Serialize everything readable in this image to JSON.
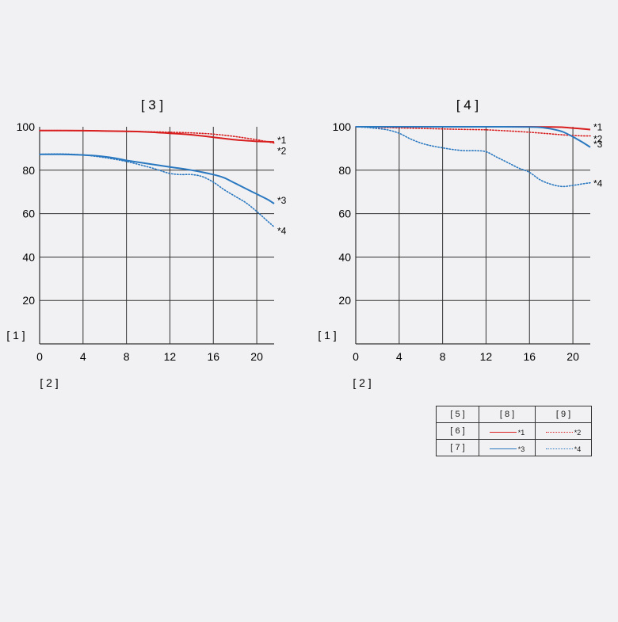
{
  "colors": {
    "sagittal": "#d81e1e",
    "meridional_blue": "#2a78c0",
    "grid": "#333333",
    "background": "#f1f1f3"
  },
  "chart_data": [
    {
      "type": "line",
      "title": "[ 3 ]",
      "ylabel": "[ 1 ]",
      "xlabel": "[ 2 ]",
      "xlim": [
        0,
        21.6
      ],
      "ylim": [
        0,
        100
      ],
      "xticks": [
        "0",
        "4",
        "8",
        "12",
        "16",
        "20"
      ],
      "yticks": [
        "20",
        "40",
        "60",
        "80",
        "100"
      ],
      "grid": true,
      "series": [
        {
          "name": "*1",
          "style": "solid",
          "color": "red",
          "x": [
            0,
            4,
            8,
            10,
            12,
            14,
            16,
            18,
            20,
            21.6
          ],
          "y": [
            98.3,
            98.2,
            97.9,
            97.6,
            97.0,
            96.3,
            95.2,
            94.0,
            93.3,
            93.0
          ]
        },
        {
          "name": "*2",
          "style": "dotted",
          "color": "red",
          "x": [
            0,
            4,
            8,
            12,
            14,
            16,
            18,
            20,
            21.6
          ],
          "y": [
            98.3,
            98.2,
            97.9,
            97.5,
            97.2,
            96.6,
            95.5,
            94.0,
            92.5
          ]
        },
        {
          "name": "*3",
          "style": "solid",
          "color": "blue",
          "x": [
            0,
            2,
            4,
            5.5,
            7,
            8,
            10,
            12,
            14,
            16,
            17,
            18,
            19,
            20,
            21,
            21.6
          ],
          "y": [
            87.3,
            87.3,
            87.0,
            86.5,
            85.5,
            84.5,
            83.0,
            81.5,
            80.0,
            78.0,
            76.5,
            74.0,
            71.5,
            69.0,
            66.5,
            64.6
          ]
        },
        {
          "name": "*4",
          "style": "dotted",
          "color": "blue",
          "x": [
            0,
            2,
            4,
            6,
            8,
            10,
            11,
            12,
            13,
            14,
            15,
            16,
            17,
            18,
            19,
            20,
            21,
            21.6
          ],
          "y": [
            87.3,
            87.5,
            87.0,
            85.8,
            84.0,
            81.5,
            80.0,
            78.5,
            78.0,
            78.0,
            77.0,
            74.5,
            71.0,
            68.0,
            65.0,
            61.0,
            56.5,
            53.9
          ]
        }
      ],
      "series_labels_order": [
        "*1",
        "*2",
        "*3",
        "*4"
      ]
    },
    {
      "type": "line",
      "title": "[ 4 ]",
      "ylabel": "[ 1 ]",
      "xlabel": "[ 2 ]",
      "xlim": [
        0,
        21.6
      ],
      "ylim": [
        0,
        100
      ],
      "xticks": [
        "0",
        "4",
        "8",
        "12",
        "16",
        "20"
      ],
      "yticks": [
        "20",
        "40",
        "60",
        "80",
        "100"
      ],
      "grid": true,
      "series": [
        {
          "name": "*1",
          "style": "solid",
          "color": "red",
          "x": [
            0,
            8,
            12,
            16,
            18,
            19,
            20,
            21,
            21.6
          ],
          "y": [
            100,
            100,
            100,
            100,
            99.9,
            99.8,
            99.4,
            99.0,
            98.7
          ]
        },
        {
          "name": "*2",
          "style": "dotted",
          "color": "red",
          "x": [
            0,
            4,
            8,
            10,
            12,
            14,
            16,
            18,
            19,
            20,
            21,
            21.6
          ],
          "y": [
            100,
            99.5,
            99.0,
            98.8,
            98.6,
            98.1,
            97.5,
            96.7,
            96.3,
            96.0,
            95.8,
            95.8
          ]
        },
        {
          "name": "*3",
          "style": "solid",
          "color": "blue",
          "x": [
            0,
            4,
            8,
            12,
            16,
            17,
            18,
            19,
            20,
            21,
            21.6
          ],
          "y": [
            100,
            100,
            100,
            100,
            99.9,
            99.7,
            99.0,
            97.8,
            95.4,
            92.5,
            90.6
          ]
        },
        {
          "name": "*4",
          "style": "dotted",
          "color": "blue",
          "x": [
            0,
            1,
            2,
            3,
            4,
            5,
            6,
            7,
            8,
            9,
            10,
            11,
            12,
            13,
            14,
            15,
            16,
            17,
            18,
            19,
            20,
            21,
            21.6
          ],
          "y": [
            100,
            99.7,
            99.2,
            98.5,
            97.0,
            94.5,
            92.5,
            91.2,
            90.3,
            89.5,
            89.0,
            89.0,
            88.5,
            86.0,
            83.5,
            81.0,
            79.0,
            75.5,
            73.5,
            72.5,
            73.0,
            73.8,
            74.2
          ]
        }
      ],
      "series_labels_order": [
        "*1",
        "*2",
        "*3",
        "*4"
      ]
    }
  ],
  "legend": {
    "header": [
      "[ 5 ]",
      "[ 8 ]",
      "[ 9 ]"
    ],
    "rows": [
      {
        "label": "[ 6 ]",
        "solid_name": "*1",
        "dotted_name": "*2",
        "color": "red"
      },
      {
        "label": "[ 7 ]",
        "solid_name": "*3",
        "dotted_name": "*4",
        "color": "blue"
      }
    ]
  }
}
